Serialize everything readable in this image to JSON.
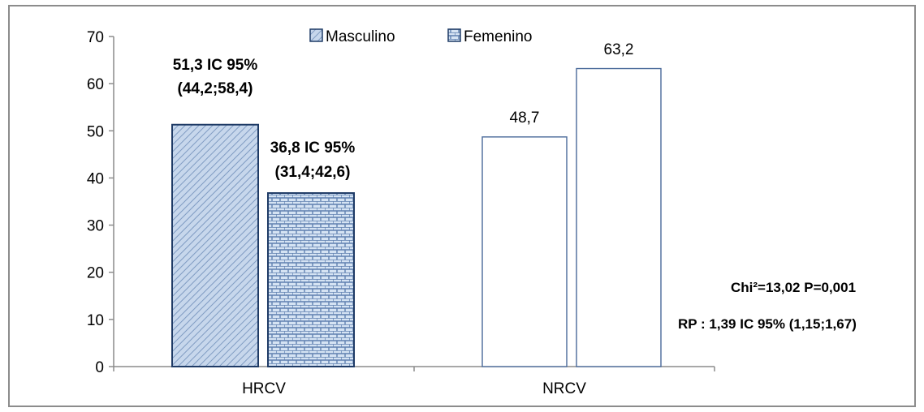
{
  "chart_data": {
    "type": "bar",
    "title": "",
    "xlabel": "",
    "ylabel": "",
    "categories": [
      "HRCV",
      "NRCV"
    ],
    "series": [
      {
        "name": "Masculino",
        "values": [
          51.3,
          48.7
        ],
        "color": "#b9cde6",
        "pattern": "diagonal-hatch"
      },
      {
        "name": "Femenino",
        "values": [
          36.8,
          63.2
        ],
        "color": "#c9daf0",
        "pattern": "brick"
      }
    ],
    "ylim": [
      0,
      70
    ],
    "yticks": [
      "0",
      "10",
      "20",
      "30",
      "40",
      "50",
      "60",
      "70"
    ],
    "grid": false,
    "legend": "top-center",
    "data_labels": {
      "hrcv_masculino": {
        "line1": "51,3  IC 95%",
        "line2": "(44,2;58,4)"
      },
      "hrcv_femenino": {
        "line1": "36,8  IC 95%",
        "line2": "(31,4;42,6)"
      },
      "nrcv_masculino": "48,7",
      "nrcv_femenino": "63,2"
    },
    "annotations": {
      "chi": "Chi²=13,02  P=0,001",
      "rp": "RP : 1,39 IC 95% (1,15;1,67)"
    },
    "colors": {
      "outline": "#1f3b66",
      "axis": "#8c8c8c",
      "nrcv_bar_fill": "#ffffff",
      "nrcv_bar_outline": "#4a6a9a"
    }
  }
}
